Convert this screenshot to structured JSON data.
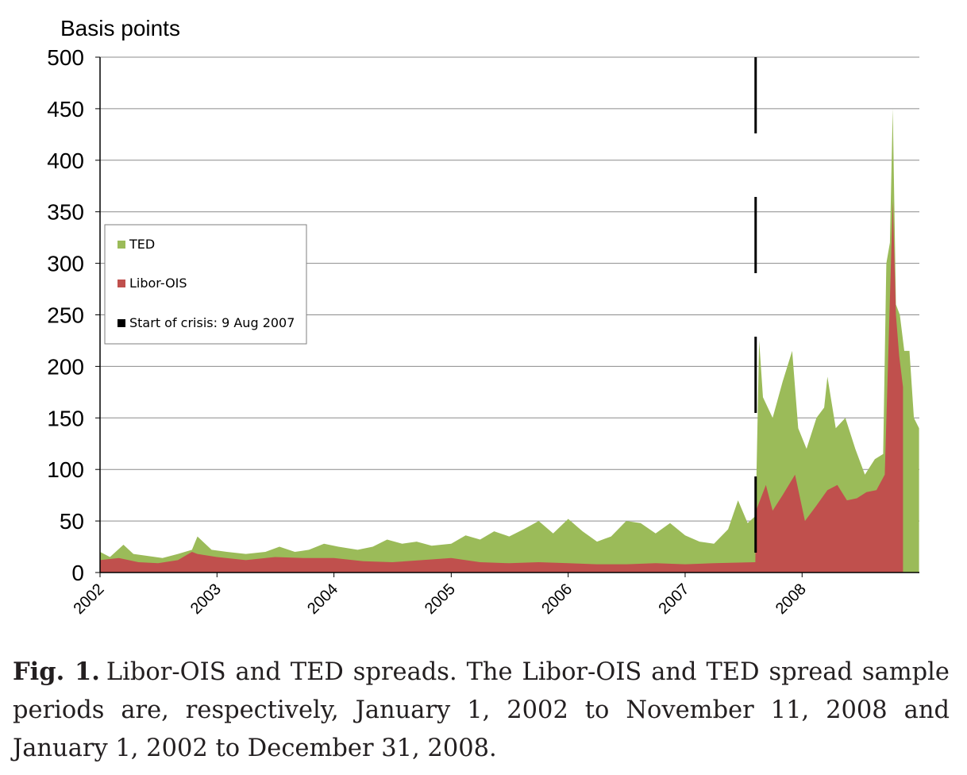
{
  "chart_data": {
    "type": "area",
    "ylabel": "Basis points",
    "ylim": [
      0,
      500
    ],
    "yticks": [
      "0",
      "50",
      "100",
      "150",
      "200",
      "250",
      "300",
      "350",
      "400",
      "450",
      "500"
    ],
    "xlim": [
      "2002-01-01",
      "2008-12-31"
    ],
    "xticks": [
      "2002",
      "2003",
      "2004",
      "2005",
      "2006",
      "2007",
      "2008"
    ],
    "grid": "horizontal",
    "legend_position": "left",
    "colors": {
      "ted": "#9bbb59",
      "libor_ois": "#c0504d",
      "crisis": "#000000"
    },
    "series": [
      {
        "name": "TED",
        "x": [
          "2002-01-01",
          "2002-02-01",
          "2002-03-15",
          "2002-04-15",
          "2002-06-01",
          "2002-07-15",
          "2002-09-01",
          "2002-10-15",
          "2002-11-01",
          "2002-12-15",
          "2003-02-01",
          "2003-04-01",
          "2003-06-01",
          "2003-07-15",
          "2003-09-01",
          "2003-10-15",
          "2003-12-01",
          "2004-01-15",
          "2004-03-15",
          "2004-05-01",
          "2004-06-15",
          "2004-08-01",
          "2004-09-15",
          "2004-11-01",
          "2005-01-01",
          "2005-02-15",
          "2005-04-01",
          "2005-05-15",
          "2005-07-01",
          "2005-08-15",
          "2005-10-01",
          "2005-11-15",
          "2006-01-01",
          "2006-02-15",
          "2006-04-01",
          "2006-05-15",
          "2006-07-01",
          "2006-08-15",
          "2006-10-01",
          "2006-11-15",
          "2007-01-01",
          "2007-02-15",
          "2007-04-01",
          "2007-05-15",
          "2007-06-15",
          "2007-07-15",
          "2007-08-09",
          "2007-08-20",
          "2007-09-01",
          "2007-10-01",
          "2007-11-01",
          "2007-12-01",
          "2007-12-20",
          "2008-01-15",
          "2008-02-15",
          "2008-03-10",
          "2008-03-20",
          "2008-04-15",
          "2008-05-15",
          "2008-06-15",
          "2008-07-15",
          "2008-08-15",
          "2008-09-10",
          "2008-09-20",
          "2008-10-01",
          "2008-10-10",
          "2008-10-20",
          "2008-11-01",
          "2008-11-15",
          "2008-12-01",
          "2008-12-15",
          "2008-12-31"
        ],
        "values": [
          20,
          15,
          27,
          18,
          16,
          14,
          18,
          22,
          35,
          22,
          20,
          18,
          20,
          25,
          20,
          22,
          28,
          25,
          22,
          25,
          32,
          28,
          30,
          26,
          28,
          36,
          32,
          40,
          35,
          42,
          50,
          38,
          52,
          40,
          30,
          35,
          50,
          48,
          38,
          48,
          36,
          30,
          28,
          42,
          70,
          48,
          55,
          225,
          170,
          150,
          185,
          215,
          140,
          120,
          150,
          160,
          190,
          140,
          150,
          120,
          95,
          110,
          115,
          300,
          320,
          450,
          260,
          250,
          215,
          215,
          150,
          140
        ]
      },
      {
        "name": "Libor-OIS",
        "x": [
          "2002-01-01",
          "2002-03-01",
          "2002-05-01",
          "2002-07-01",
          "2002-09-01",
          "2002-10-15",
          "2002-11-01",
          "2003-01-01",
          "2003-04-01",
          "2003-07-01",
          "2003-10-01",
          "2004-01-01",
          "2004-04-01",
          "2004-07-01",
          "2004-10-01",
          "2005-01-01",
          "2005-04-01",
          "2005-07-01",
          "2005-10-01",
          "2006-01-01",
          "2006-04-01",
          "2006-07-01",
          "2006-10-01",
          "2007-01-01",
          "2007-04-01",
          "2007-08-08",
          "2007-08-10",
          "2007-09-10",
          "2007-10-01",
          "2007-11-01",
          "2007-12-10",
          "2008-01-10",
          "2008-02-15",
          "2008-03-20",
          "2008-04-20",
          "2008-05-20",
          "2008-06-20",
          "2008-07-20",
          "2008-08-20",
          "2008-09-15",
          "2008-09-25",
          "2008-10-10",
          "2008-10-20",
          "2008-10-30",
          "2008-11-11"
        ],
        "values": [
          12,
          14,
          10,
          9,
          12,
          20,
          18,
          15,
          12,
          15,
          14,
          14,
          11,
          10,
          12,
          14,
          10,
          9,
          10,
          9,
          8,
          8,
          9,
          8,
          9,
          10,
          60,
          85,
          60,
          75,
          95,
          50,
          65,
          80,
          85,
          70,
          72,
          78,
          80,
          95,
          200,
          360,
          250,
          210,
          180
        ]
      }
    ],
    "annotations": [
      {
        "type": "vertical_line",
        "x": "2007-08-09",
        "label": "Start of crisis: 9 Aug 2007"
      }
    ]
  },
  "legend": {
    "items": [
      {
        "key": "ted",
        "label": "TED"
      },
      {
        "key": "libor_ois",
        "label": "Libor-OIS"
      },
      {
        "key": "crisis",
        "label": "Start of crisis: 9 Aug 2007"
      }
    ]
  },
  "caption": {
    "label": "Fig. 1.",
    "text": "Libor-OIS and TED spreads. The Libor-OIS and TED spread sample periods are, respectively, January 1, 2002 to November 11, 2008 and January 1, 2002 to December 31, 2008."
  }
}
